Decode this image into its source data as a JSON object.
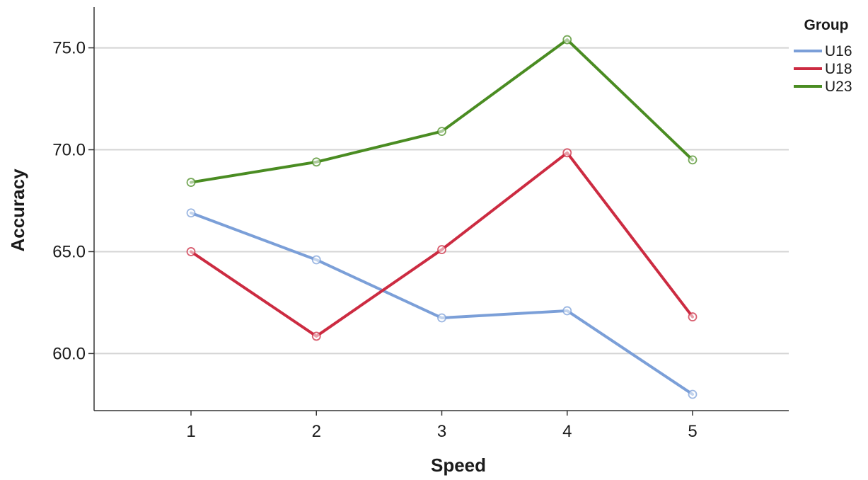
{
  "chart_data": {
    "type": "line",
    "title": "",
    "xlabel": "Speed",
    "ylabel": "Accuracy",
    "categories": [
      "1",
      "2",
      "3",
      "4",
      "5"
    ],
    "ylim": [
      57.2,
      77.0
    ],
    "yticks": [
      60.0,
      65.0,
      70.0,
      75.0
    ],
    "ytick_labels": [
      "60.0",
      "65.0",
      "70.0",
      "75.0"
    ],
    "grid": "horizontal",
    "legend": {
      "title": "Group",
      "placement": "top-right"
    },
    "series": [
      {
        "name": "U16",
        "color": "#7b9fd8",
        "values": [
          66.9,
          64.6,
          61.75,
          62.1,
          58.0
        ]
      },
      {
        "name": "U18",
        "color": "#cc2b41",
        "values": [
          65.0,
          60.85,
          65.1,
          69.85,
          61.8
        ]
      },
      {
        "name": "U23",
        "color": "#4a8c22",
        "values": [
          68.4,
          69.4,
          70.9,
          75.4,
          69.5
        ]
      }
    ]
  }
}
